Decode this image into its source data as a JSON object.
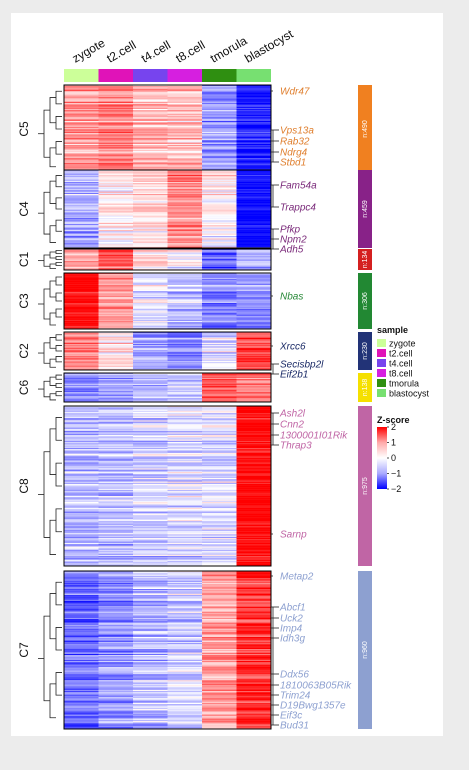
{
  "chart_data": {
    "type": "heatmap",
    "columns": [
      "zygote",
      "t2.cell",
      "t4.cell",
      "t8.cell",
      "tmorula",
      "blastocyst"
    ],
    "column_colors": [
      "#ccff99",
      "#e013b8",
      "#7744ee",
      "#d61fe0",
      "#2f8f11",
      "#77e071"
    ],
    "clusters": [
      {
        "name": "C5",
        "count_label": "n:490",
        "color": "#f08020",
        "profile": [
          0.8,
          1.0,
          0.6,
          0.5,
          -0.8,
          -1.8
        ],
        "genes": [
          "Wdr47",
          "Vps13a",
          "Rab32",
          "Ndrg4",
          "Stbd1"
        ],
        "gene_color": "#e08030"
      },
      {
        "name": "C4",
        "count_label": "n:459",
        "color": "#882288",
        "profile": [
          -0.6,
          0.2,
          0.3,
          1.0,
          0.1,
          -2.0
        ],
        "genes": [
          "Fam54a",
          "Trappc4",
          "Pfkp",
          "Npm2",
          "Adh5"
        ],
        "gene_color": "#7a2a7a"
      },
      {
        "name": "C1",
        "count_label": "n:134",
        "color": "#d42020",
        "profile": [
          0.6,
          1.3,
          0.2,
          0.0,
          -1.2,
          -0.6
        ],
        "genes": [],
        "gene_color": "#cc2222"
      },
      {
        "name": "C3",
        "count_label": "n:306",
        "color": "#228833",
        "profile": [
          2.0,
          0.8,
          -0.2,
          -0.5,
          -1.0,
          -0.9
        ],
        "genes": [
          "Nbas"
        ],
        "gene_color": "#2a8a3a"
      },
      {
        "name": "C2",
        "count_label": "n:230",
        "color": "#223377",
        "profile": [
          0.9,
          0.2,
          -0.8,
          -1.0,
          -0.3,
          1.4
        ],
        "genes": [
          "Xrcc6",
          "Secisbp2l",
          "Eif2b1"
        ],
        "gene_color": "#1a2a66"
      },
      {
        "name": "C6",
        "count_label": "n:138",
        "color": "#f5e000",
        "profile": [
          -1.0,
          -0.8,
          -0.6,
          -0.5,
          1.3,
          1.0
        ],
        "genes": [],
        "gene_color": "#c0a000"
      },
      {
        "name": "C8",
        "count_label": "n:975",
        "color": "#c065a5",
        "profile": [
          -0.6,
          -0.5,
          -0.4,
          -0.3,
          -0.3,
          2.0
        ],
        "genes": [
          "Ash2l",
          "Cnn2",
          "1300001I01Rik",
          "Thrap3",
          "Sarnp"
        ],
        "gene_color": "#c065a5"
      },
      {
        "name": "C7",
        "count_label": "n:960",
        "color": "#8da0d0",
        "profile": [
          -1.2,
          -0.9,
          -0.6,
          -0.4,
          0.7,
          1.6
        ],
        "genes": [
          "Metap2",
          "Abcf1",
          "Uck2",
          "Imp4",
          "Idh3g",
          "Ddx56",
          "1810063B05Rik",
          "Trim24",
          "D19Bwg1357e",
          "Eif3c",
          "Bud31"
        ],
        "gene_color": "#8da0d0"
      }
    ],
    "legend": {
      "sample_title": "sample",
      "zscore_title": "Z-score",
      "zscore_ticks": [
        2,
        1,
        0,
        -1,
        -2
      ],
      "zscore_tick_labels": [
        "2",
        "1",
        "0",
        "−1",
        "−2"
      ],
      "zscore_colors": [
        "#ff0000",
        "#ffaaaa",
        "#ffffff",
        "#aaaaff",
        "#0000ff"
      ]
    }
  }
}
